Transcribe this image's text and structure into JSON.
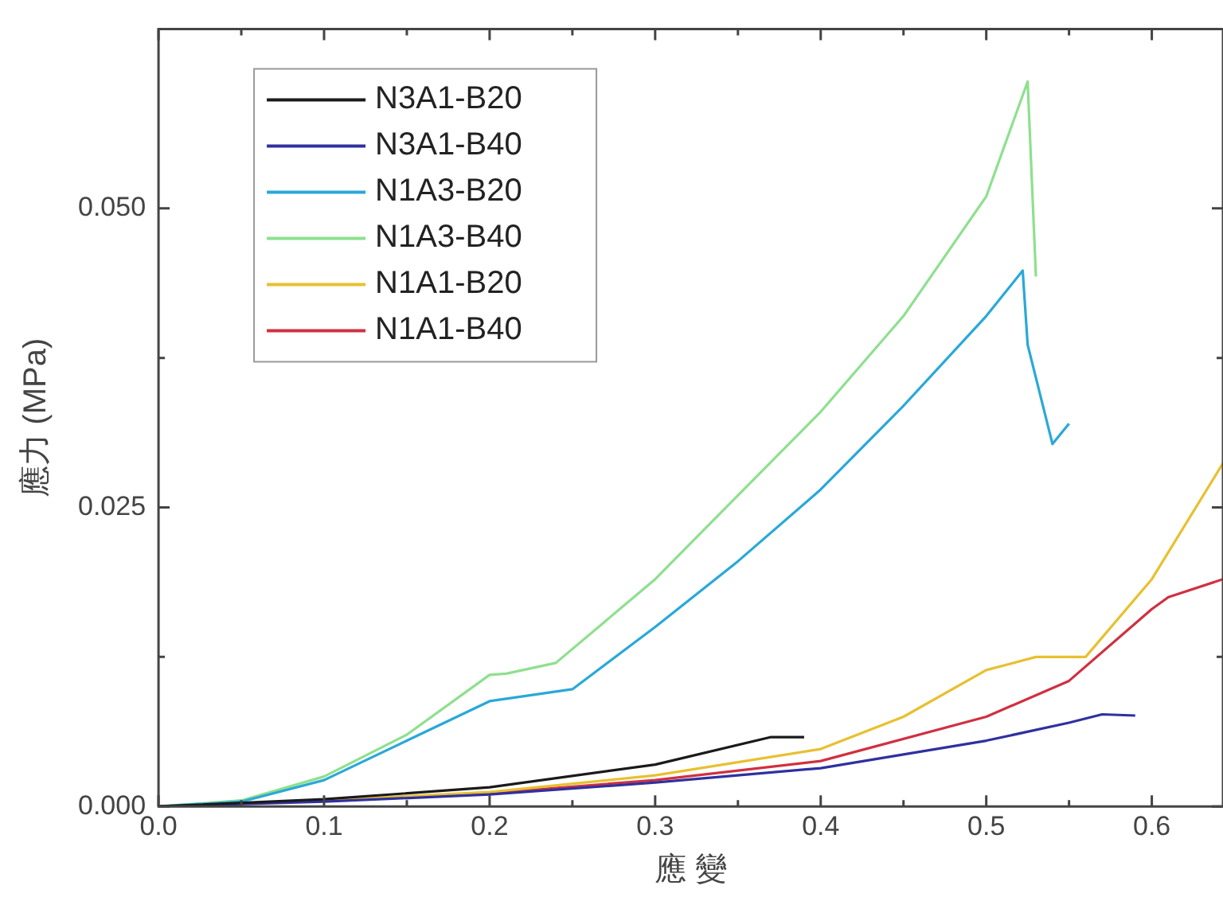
{
  "chart_data": {
    "type": "line",
    "xlabel": "應 變",
    "ylabel": "應力 (MPa)",
    "xlim": [
      0,
      0.643
    ],
    "ylim": [
      0,
      0.065
    ],
    "xticks": [
      {
        "value": 0,
        "label": "0.0"
      },
      {
        "value": 0.05,
        "label": null
      },
      0.1,
      {
        "value": 0.15,
        "label": null
      },
      0.2,
      {
        "value": 0.25,
        "label": null
      },
      0.3,
      {
        "value": 0.35,
        "label": null
      },
      0.4,
      {
        "value": 0.45,
        "label": null
      },
      0.5,
      {
        "value": 0.55,
        "label": null
      },
      0.6
    ],
    "yticks": [
      {
        "value": 0,
        "label": "0.000"
      },
      {
        "value": 0.0125,
        "label": null
      },
      {
        "value": 0.025,
        "label": "0.025"
      },
      {
        "value": 0.0375,
        "label": null
      },
      {
        "value": 0.05,
        "label": "0.050"
      }
    ],
    "legend": "top left",
    "grid": false,
    "marker": "none",
    "line_style": "solid",
    "series": [
      {
        "name": "N3A1-B20",
        "color": "#1a1a1a",
        "x": [
          0,
          0.1,
          0.2,
          0.3,
          0.37,
          0.39
        ],
        "values": [
          0,
          0.0006,
          0.0016,
          0.0035,
          0.0058,
          0.0058
        ]
      },
      {
        "name": "N3A1-B40",
        "color": "#3030a0",
        "x": [
          0,
          0.1,
          0.2,
          0.3,
          0.4,
          0.5,
          0.55,
          0.57,
          0.59
        ],
        "values": [
          0,
          0.0004,
          0.001,
          0.002,
          0.0032,
          0.0055,
          0.007,
          0.0077,
          0.0076
        ]
      },
      {
        "name": "N1A3-B20",
        "color": "#2aa8d8",
        "x": [
          0,
          0.05,
          0.1,
          0.15,
          0.2,
          0.21,
          0.25,
          0.3,
          0.35,
          0.4,
          0.45,
          0.5,
          0.522,
          0.525,
          0.54,
          0.55
        ],
        "values": [
          0,
          0.0004,
          0.0022,
          0.0055,
          0.0088,
          0.009,
          0.0098,
          0.015,
          0.0205,
          0.0265,
          0.0335,
          0.041,
          0.0448,
          0.0386,
          0.0303,
          0.032
        ]
      },
      {
        "name": "N1A3-B40",
        "color": "#8ee08e",
        "x": [
          0,
          0.05,
          0.1,
          0.15,
          0.2,
          0.21,
          0.24,
          0.3,
          0.35,
          0.4,
          0.45,
          0.5,
          0.525,
          0.53
        ],
        "values": [
          0,
          0.0005,
          0.0025,
          0.006,
          0.011,
          0.0111,
          0.012,
          0.019,
          0.026,
          0.033,
          0.041,
          0.051,
          0.0606,
          0.0443
        ]
      },
      {
        "name": "N1A1-B20",
        "color": "#e8c030",
        "x": [
          0,
          0.1,
          0.2,
          0.3,
          0.4,
          0.45,
          0.5,
          0.53,
          0.56,
          0.6,
          0.643
        ],
        "values": [
          0,
          0.0005,
          0.0012,
          0.0026,
          0.0048,
          0.0075,
          0.0114,
          0.0125,
          0.0125,
          0.019,
          0.0287
        ]
      },
      {
        "name": "N1A1-B40",
        "color": "#d03040",
        "x": [
          0,
          0.1,
          0.2,
          0.3,
          0.4,
          0.5,
          0.55,
          0.6,
          0.61,
          0.643
        ],
        "values": [
          0,
          0.0005,
          0.0011,
          0.0022,
          0.0038,
          0.0075,
          0.0105,
          0.0165,
          0.0175,
          0.019
        ]
      }
    ]
  }
}
